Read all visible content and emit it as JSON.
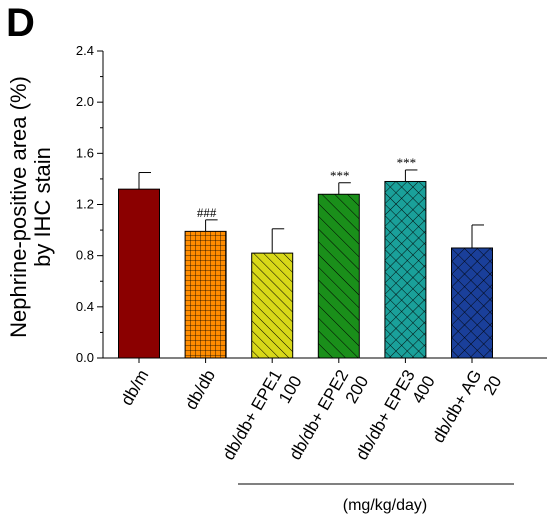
{
  "panel_label": "D",
  "chart_data": {
    "type": "bar",
    "ylabel_lines": [
      "Nephrine-positive area (%)",
      "by IHC stain"
    ],
    "ylim": [
      0.0,
      2.4
    ],
    "yticks": [
      "0.0",
      "0.4",
      "0.8",
      "1.2",
      "1.6",
      "2.0",
      "2.4"
    ],
    "categories": [
      [
        "db/m"
      ],
      [
        "db/db"
      ],
      [
        "db/db+ EPE1",
        "100"
      ],
      [
        "db/db+ EPE2",
        "200"
      ],
      [
        "db/db+ EPE3",
        "400"
      ],
      [
        "db/db+ AG",
        "20"
      ]
    ],
    "values": [
      1.32,
      0.99,
      0.82,
      1.28,
      1.38,
      0.86
    ],
    "errors": [
      0.13,
      0.09,
      0.19,
      0.09,
      0.09,
      0.18
    ],
    "significance": [
      "",
      "###",
      "",
      "***",
      "***",
      ""
    ],
    "bar_colors": [
      "#8b0000",
      "#ff8c00",
      "#d8d818",
      "#1a8f1a",
      "#1aa09a",
      "#1a3f9a"
    ],
    "patterns": [
      "solid",
      "grid",
      "diag",
      "diag",
      "crosshatch",
      "crosshatch"
    ],
    "dose_unit": "(mg/kg/day)",
    "grid": false,
    "legend": "none"
  }
}
